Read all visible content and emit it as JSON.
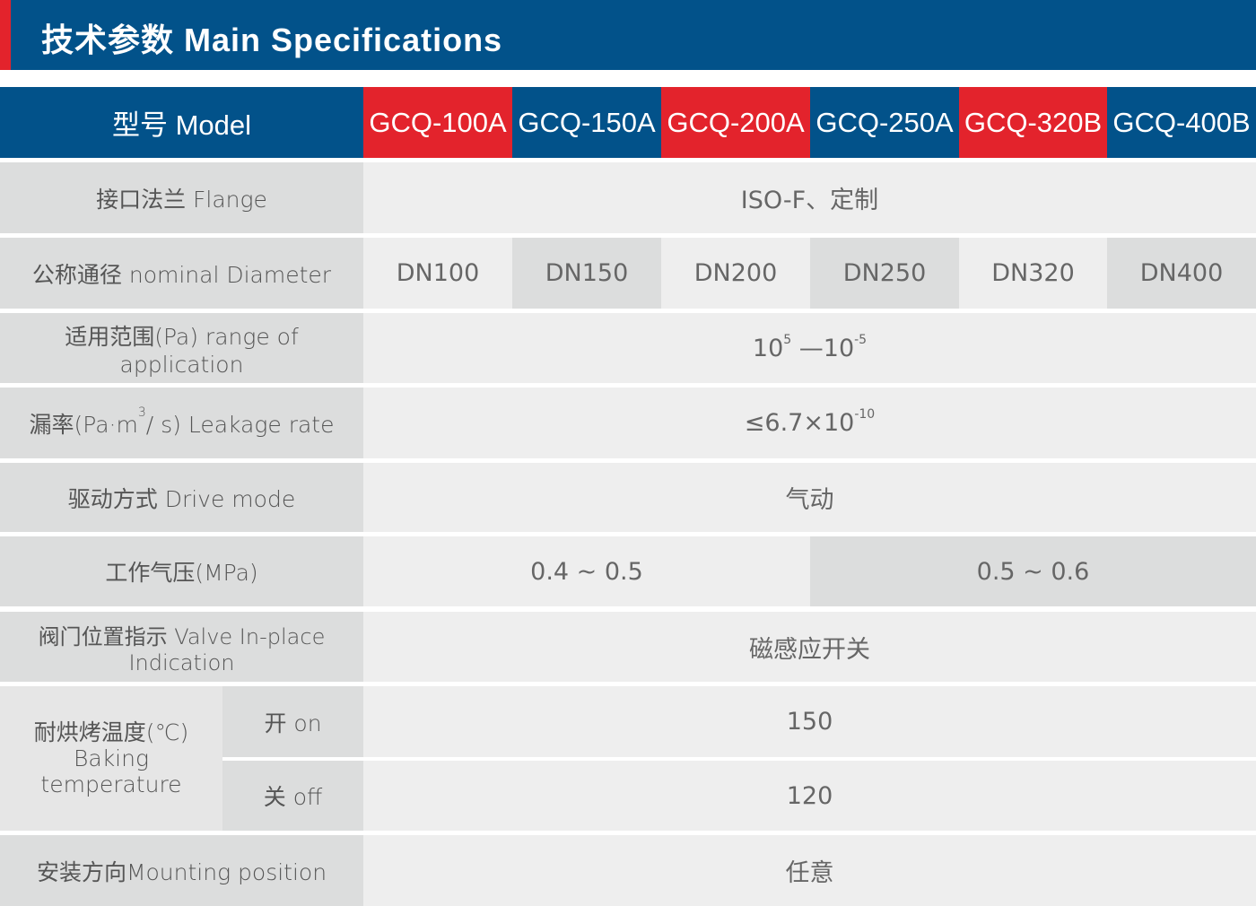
{
  "header": {
    "title": "技术参数 Main Specifications"
  },
  "colors": {
    "blue": "#02528a",
    "red": "#e3232c",
    "label_bg": "#dcdddd",
    "value_bg": "#eeeeee"
  },
  "table": {
    "model_label": "型号 Model",
    "models": [
      "GCQ-100A",
      "GCQ-150A",
      "GCQ-200A",
      "GCQ-250A",
      "GCQ-320B",
      "GCQ-400B"
    ],
    "flange": {
      "label": "接口法兰 Flange",
      "value": "ISO-F、定制"
    },
    "diameter": {
      "label": "公称通径 nominal Diameter",
      "values": [
        "DN100",
        "DN150",
        "DN200",
        "DN250",
        "DN320",
        "DN400"
      ]
    },
    "range": {
      "label": "适用范围(Pa) range of application",
      "base1": "10",
      "exp1": "5",
      "sep": " —",
      "base2": "10",
      "exp2": "-5"
    },
    "leakage": {
      "label_pre": "漏率(Pa·m",
      "label_exp": "3",
      "label_post": "/ s) Leakage rate",
      "base": "≤6.7×10",
      "exp": "-10"
    },
    "drive": {
      "label": "驱动方式 Drive mode",
      "value": "气动"
    },
    "pressure": {
      "label": "工作气压(MPa)",
      "values": [
        "0.4 ~ 0.5",
        "0.5 ~ 0.6"
      ]
    },
    "indication": {
      "label": "阀门位置指示 Valve In-place Indication",
      "value": "磁感应开关"
    },
    "baking": {
      "label_cn": "耐烘烤温度(℃)",
      "label_en1": "Baking",
      "label_en2": "temperature",
      "on_label": "开 on",
      "on_value": "150",
      "off_label": "关 off",
      "off_value": "120"
    },
    "mounting": {
      "label": "安装方向Mounting position",
      "value": "任意"
    }
  }
}
